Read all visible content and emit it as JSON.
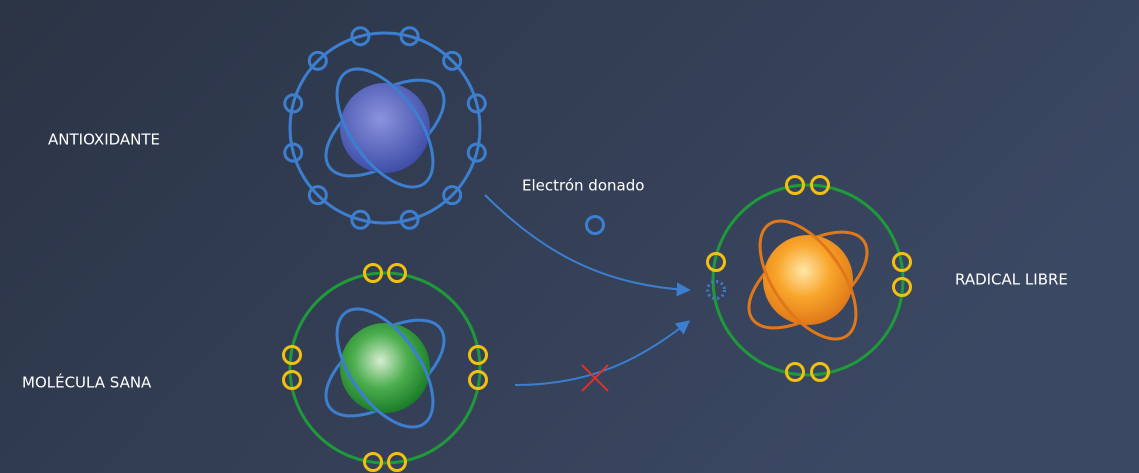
{
  "labels": {
    "antioxidant": "ANTIOXIDANTE",
    "donated_electron": "Electrón donado",
    "healthy_molecule": "MOLÉCULA SANA",
    "free_radical": "RADICAL LIBRE"
  }
}
